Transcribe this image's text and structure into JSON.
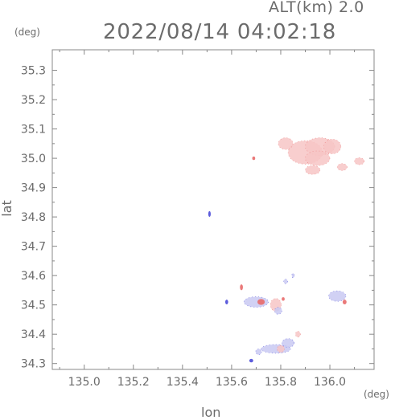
{
  "header": {
    "alt_label": "ALT(km) 2.0",
    "timestamp": "2022/08/14 04:02:18",
    "lat_unit": "(deg)",
    "lon_unit": "(deg)"
  },
  "chart_data": {
    "type": "heatmap",
    "title": "2022/08/14 04:02:18",
    "subtitle": "ALT(km) 2.0",
    "xlabel": "lon",
    "ylabel": "lat",
    "xunit": "(deg)",
    "yunit": "(deg)",
    "xlim": [
      134.87,
      136.18
    ],
    "ylim": [
      34.28,
      35.37
    ],
    "xticks": [
      135.0,
      135.2,
      135.4,
      135.6,
      135.8,
      136.0
    ],
    "yticks": [
      34.3,
      34.4,
      34.5,
      34.6,
      34.7,
      34.8,
      34.9,
      35.0,
      35.1,
      35.2,
      35.3
    ],
    "xtick_labels": [
      "135.0",
      "135.2",
      "135.4",
      "135.6",
      "135.8",
      "136.0"
    ],
    "ytick_labels": [
      "34.3",
      "34.4",
      "34.5",
      "34.6",
      "34.7",
      "34.8",
      "34.9",
      "35.0",
      "35.1",
      "35.2",
      "35.3"
    ],
    "grid": false,
    "colors": {
      "positive": "#f7c6c6",
      "positive_strong": "#e86a6a",
      "negative": "#c9c9f2",
      "negative_strong": "#4a4ad8",
      "axis": "#888888"
    },
    "echoes": [
      {
        "lon": 135.9,
        "lat": 35.02,
        "rlon": 0.07,
        "rlat": 0.04,
        "sign": "positive",
        "strength": 0.3
      },
      {
        "lon": 135.96,
        "lat": 35.04,
        "rlon": 0.06,
        "rlat": 0.03,
        "sign": "positive",
        "strength": 0.3
      },
      {
        "lon": 136.01,
        "lat": 35.04,
        "rlon": 0.035,
        "rlat": 0.025,
        "sign": "positive",
        "strength": 0.3
      },
      {
        "lon": 135.82,
        "lat": 35.05,
        "rlon": 0.03,
        "rlat": 0.02,
        "sign": "positive",
        "strength": 0.3
      },
      {
        "lon": 135.95,
        "lat": 35.0,
        "rlon": 0.05,
        "rlat": 0.025,
        "sign": "positive",
        "strength": 0.3
      },
      {
        "lon": 135.93,
        "lat": 34.96,
        "rlon": 0.03,
        "rlat": 0.015,
        "sign": "positive",
        "strength": 0.5
      },
      {
        "lon": 136.05,
        "lat": 34.97,
        "rlon": 0.02,
        "rlat": 0.012,
        "sign": "positive",
        "strength": 0.3
      },
      {
        "lon": 136.12,
        "lat": 34.99,
        "rlon": 0.02,
        "rlat": 0.012,
        "sign": "positive",
        "strength": 0.3
      },
      {
        "lon": 135.69,
        "lat": 35.0,
        "rlon": 0.006,
        "rlat": 0.006,
        "sign": "positive",
        "strength": 0.8
      },
      {
        "lon": 135.51,
        "lat": 34.81,
        "rlon": 0.005,
        "rlat": 0.01,
        "sign": "negative",
        "strength": 0.8
      },
      {
        "lon": 135.64,
        "lat": 34.56,
        "rlon": 0.006,
        "rlat": 0.01,
        "sign": "positive",
        "strength": 0.9
      },
      {
        "lon": 135.58,
        "lat": 34.51,
        "rlon": 0.006,
        "rlat": 0.008,
        "sign": "negative",
        "strength": 0.7
      },
      {
        "lon": 135.7,
        "lat": 34.51,
        "rlon": 0.05,
        "rlat": 0.018,
        "sign": "negative",
        "strength": 0.5
      },
      {
        "lon": 135.72,
        "lat": 34.51,
        "rlon": 0.015,
        "rlat": 0.01,
        "sign": "positive",
        "strength": 0.9
      },
      {
        "lon": 135.78,
        "lat": 34.5,
        "rlon": 0.022,
        "rlat": 0.022,
        "sign": "positive",
        "strength": 0.5
      },
      {
        "lon": 135.79,
        "lat": 34.48,
        "rlon": 0.015,
        "rlat": 0.012,
        "sign": "negative",
        "strength": 0.6
      },
      {
        "lon": 135.81,
        "lat": 34.52,
        "rlon": 0.006,
        "rlat": 0.006,
        "sign": "positive",
        "strength": 0.9
      },
      {
        "lon": 135.82,
        "lat": 34.58,
        "rlon": 0.008,
        "rlat": 0.008,
        "sign": "negative",
        "strength": 0.5
      },
      {
        "lon": 135.85,
        "lat": 34.6,
        "rlon": 0.005,
        "rlat": 0.008,
        "sign": "negative",
        "strength": 0.6
      },
      {
        "lon": 136.03,
        "lat": 34.53,
        "rlon": 0.035,
        "rlat": 0.018,
        "sign": "negative",
        "strength": 0.5
      },
      {
        "lon": 136.06,
        "lat": 34.51,
        "rlon": 0.008,
        "rlat": 0.008,
        "sign": "positive",
        "strength": 0.9
      },
      {
        "lon": 135.78,
        "lat": 34.35,
        "rlon": 0.06,
        "rlat": 0.015,
        "sign": "negative",
        "strength": 0.5
      },
      {
        "lon": 135.83,
        "lat": 34.37,
        "rlon": 0.025,
        "rlat": 0.015,
        "sign": "negative",
        "strength": 0.5
      },
      {
        "lon": 135.8,
        "lat": 34.35,
        "rlon": 0.015,
        "rlat": 0.012,
        "sign": "positive",
        "strength": 0.6
      },
      {
        "lon": 135.87,
        "lat": 34.4,
        "rlon": 0.01,
        "rlat": 0.01,
        "sign": "positive",
        "strength": 0.6
      },
      {
        "lon": 135.71,
        "lat": 34.34,
        "rlon": 0.012,
        "rlat": 0.01,
        "sign": "negative",
        "strength": 0.6
      },
      {
        "lon": 135.68,
        "lat": 34.31,
        "rlon": 0.008,
        "rlat": 0.006,
        "sign": "negative",
        "strength": 0.7
      }
    ]
  }
}
